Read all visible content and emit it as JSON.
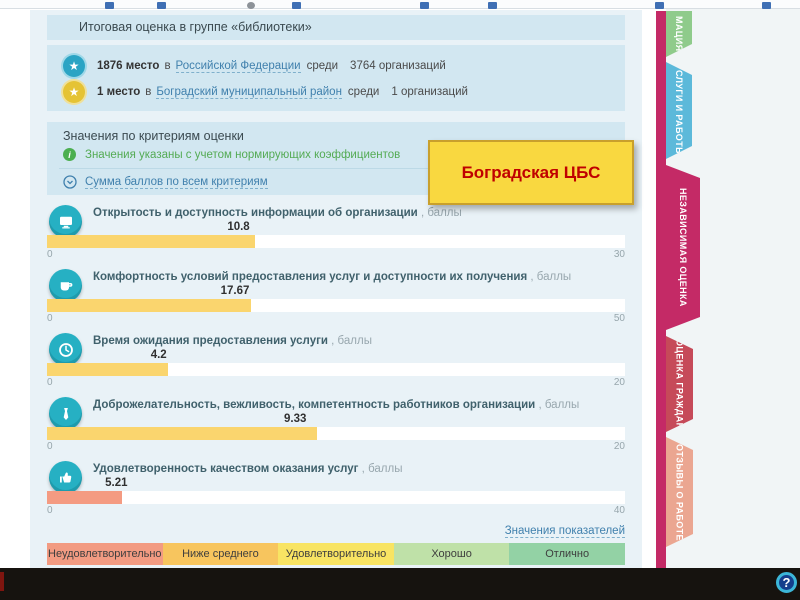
{
  "callout": {
    "text": "Боградская ЦБС"
  },
  "summary": {
    "title": "Итоговая оценка в группе «библиотеки»",
    "ranks": [
      {
        "medal": "blue",
        "place": "1876 место",
        "preposition": "в",
        "region_link": "Российской Федерации",
        "among": "среди",
        "count": "3764 организаций"
      },
      {
        "medal": "gold",
        "place": "1 место",
        "preposition": "в",
        "region_link": "Боградский муниципальный район",
        "among": "среди",
        "count": "1 организаций"
      }
    ]
  },
  "criteria_panel": {
    "title": "Значения по критериям оценки",
    "note": "Значения указаны с учетом нормирующих коэффициентов",
    "info_glyph": "i",
    "sum_link": "Сумма баллов по всем критериям"
  },
  "chart_data": {
    "type": "bar",
    "title": "Значения по критериям оценки",
    "series": [
      {
        "label": "Открытость и доступность информации об организации",
        "unit": "баллы",
        "value": 10.8,
        "max": 30,
        "color": "#fad56e",
        "icon": "monitor-icon"
      },
      {
        "label": "Комфортность условий предоставления услуг и доступности их получения",
        "unit": "баллы",
        "value": 17.67,
        "max": 50,
        "color": "#fad56e",
        "icon": "cup-icon"
      },
      {
        "label": "Время ожидания предоставления услуги",
        "unit": "баллы",
        "value": 4.2,
        "max": 20,
        "color": "#fad56e",
        "icon": "clock-icon"
      },
      {
        "label": "Доброжелательность, вежливость, компетентность работников организации",
        "unit": "баллы",
        "value": 9.33,
        "max": 20,
        "color": "#fad56e",
        "icon": "tie-icon"
      },
      {
        "label": "Удовлетворенность качеством оказания услуг",
        "unit": "баллы",
        "value": 5.21,
        "max": 40,
        "color": "#f49b82",
        "icon": "thumbs-up-icon"
      }
    ],
    "axis_min_label": "0",
    "grid": false,
    "legend_position": "bottom"
  },
  "footer": {
    "values_link": "Значения показателей"
  },
  "legend": [
    {
      "label": "Неудовлетворительно",
      "color": "#f29b82"
    },
    {
      "label": "Ниже среднего",
      "color": "#f7c55e"
    },
    {
      "label": "Удовлетворительно",
      "color": "#f8e463"
    },
    {
      "label": "Хорошо",
      "color": "#bfe1a8"
    },
    {
      "label": "Отлично",
      "color": "#93d2a5"
    }
  ],
  "tabs": [
    {
      "label": "МАЦИЯ",
      "color": "#8fcb8b",
      "active": false
    },
    {
      "label": "УСЛУГИ И РАБОТЫ",
      "color": "#5cb9da",
      "active": false
    },
    {
      "label": "НЕЗАВИСИМАЯ ОЦЕНКА",
      "color": "#c42a66",
      "active": true
    },
    {
      "label": "ОЦЕНКА ГРАЖДАН",
      "color": "#c64a59",
      "active": false
    },
    {
      "label": "ОТЗЫВЫ О РАБОТЕ",
      "color": "#eba691",
      "active": false
    }
  ],
  "help": {
    "label": "?"
  },
  "colors": {
    "accent_strip": "#c42a66",
    "panel": "#d2e7f1",
    "page_bg": "#e9f2f7",
    "bar_track": "#ffffff",
    "callout_bg": "#f9d840",
    "callout_text": "#c00000",
    "link": "#4080ad"
  }
}
